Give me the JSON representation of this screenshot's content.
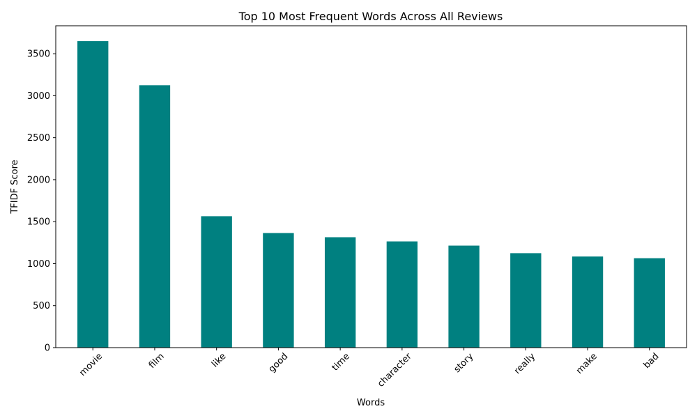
{
  "chart_data": {
    "type": "bar",
    "title": "Top 10 Most Frequent Words Across All Reviews",
    "xlabel": "Words",
    "ylabel": "TFIDF Score",
    "categories": [
      "movie",
      "film",
      "like",
      "good",
      "time",
      "character",
      "story",
      "really",
      "make",
      "bad"
    ],
    "values": [
      3650,
      3125,
      1565,
      1365,
      1315,
      1265,
      1215,
      1125,
      1085,
      1065
    ],
    "ylim": [
      0,
      3833
    ],
    "yticks": [
      0,
      500,
      1000,
      1500,
      2000,
      2500,
      3000,
      3500
    ],
    "bar_color": "#008080",
    "x_tick_rotation": 45,
    "grid": false,
    "legend": "none"
  }
}
